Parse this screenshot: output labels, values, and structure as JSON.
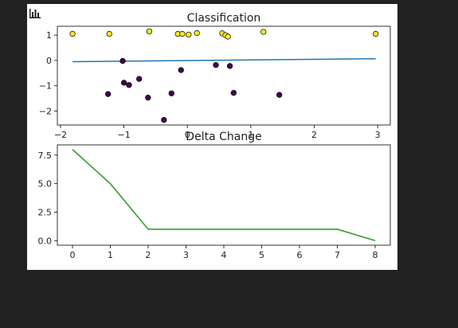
{
  "colors": {
    "page_background": "#222222",
    "figure_background": "#ffffff",
    "class_1": "#fde725",
    "class_0": "#440154",
    "trend_line": "#1f77b4",
    "delta_line": "#2ca02c"
  },
  "chart_icon": "bar-chart-icon",
  "chart_data": [
    {
      "type": "scatter",
      "title": "Classification",
      "xlabel": "",
      "ylabel": "",
      "xlim": [
        -2.05,
        3.2
      ],
      "ylim": [
        -2.55,
        1.35
      ],
      "xticks": [
        -2,
        -1,
        0,
        1,
        2,
        3
      ],
      "yticks": [
        -2,
        -1,
        0,
        1
      ],
      "grid": false,
      "points": [
        {
          "x": -1.81,
          "y": 1.05,
          "cls": 1
        },
        {
          "x": -1.23,
          "y": 1.05,
          "cls": 1
        },
        {
          "x": -0.6,
          "y": 1.15,
          "cls": 1
        },
        {
          "x": -0.15,
          "y": 1.05,
          "cls": 1
        },
        {
          "x": -0.08,
          "y": 1.05,
          "cls": 1
        },
        {
          "x": 0.02,
          "y": 1.02,
          "cls": 1
        },
        {
          "x": 0.15,
          "y": 1.08,
          "cls": 1
        },
        {
          "x": 0.55,
          "y": 1.07,
          "cls": 1
        },
        {
          "x": 0.6,
          "y": 1.0,
          "cls": 1
        },
        {
          "x": 0.64,
          "y": 0.94,
          "cls": 1
        },
        {
          "x": 1.2,
          "y": 1.13,
          "cls": 1
        },
        {
          "x": 2.97,
          "y": 1.05,
          "cls": 1
        },
        {
          "x": -1.02,
          "y": -0.02,
          "cls": 0
        },
        {
          "x": -1.25,
          "y": -1.33,
          "cls": 0
        },
        {
          "x": -1.0,
          "y": -0.88,
          "cls": 0
        },
        {
          "x": -0.92,
          "y": -0.97,
          "cls": 0
        },
        {
          "x": -0.76,
          "y": -0.73,
          "cls": 0
        },
        {
          "x": -0.62,
          "y": -1.47,
          "cls": 0
        },
        {
          "x": -0.37,
          "y": -2.35,
          "cls": 0
        },
        {
          "x": -0.25,
          "y": -1.3,
          "cls": 0
        },
        {
          "x": -0.1,
          "y": -0.38,
          "cls": 0
        },
        {
          "x": 0.45,
          "y": -0.18,
          "cls": 0
        },
        {
          "x": 0.67,
          "y": -0.22,
          "cls": 0
        },
        {
          "x": 0.73,
          "y": -1.28,
          "cls": 0
        },
        {
          "x": 1.45,
          "y": -1.36,
          "cls": 0
        }
      ],
      "line": {
        "x": [
          -1.81,
          2.97
        ],
        "y": [
          -0.05,
          0.07
        ]
      }
    },
    {
      "type": "line",
      "title": "Delta Change",
      "xlabel": "",
      "ylabel": "",
      "xlim": [
        -0.4,
        8.4
      ],
      "ylim": [
        -0.4,
        8.4
      ],
      "xticks": [
        0,
        1,
        2,
        3,
        4,
        5,
        6,
        7,
        8
      ],
      "yticks": [
        0.0,
        2.5,
        5.0,
        7.5
      ],
      "ytick_labels": [
        "0.0",
        "2.5",
        "5.0",
        "7.5"
      ],
      "grid": false,
      "x": [
        0,
        1,
        2,
        3,
        4,
        5,
        6,
        7,
        8
      ],
      "values": [
        8,
        5,
        1,
        1,
        1,
        1,
        1,
        1,
        0
      ]
    }
  ]
}
